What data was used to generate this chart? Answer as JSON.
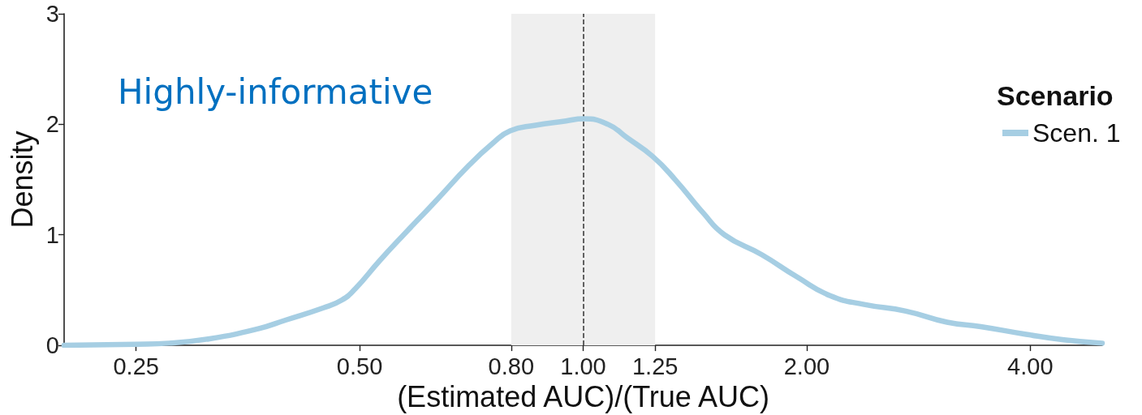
{
  "chart_data": {
    "type": "line",
    "xlabel": "(Estimated AUC)/(True AUC)",
    "ylabel": "Density",
    "legend_title": "Scenario",
    "annotations": [
      "Highly-informative"
    ],
    "x": [
      0.2,
      0.25,
      0.277,
      0.314,
      0.365,
      0.398,
      0.447,
      0.473,
      0.493,
      0.531,
      0.573,
      0.632,
      0.702,
      0.756,
      0.797,
      0.86,
      0.948,
      1.0,
      1.08,
      1.145,
      1.24,
      1.33,
      1.45,
      1.55,
      1.74,
      1.94,
      2.15,
      2.39,
      2.72,
      3.09,
      3.43,
      3.95,
      4.44,
      5.0
    ],
    "series": [
      {
        "name": "Scen. 1",
        "color": "#a6cee3",
        "values": [
          0.0,
          0.01,
          0.02,
          0.06,
          0.15,
          0.23,
          0.34,
          0.41,
          0.51,
          0.76,
          1.0,
          1.3,
          1.63,
          1.83,
          1.94,
          1.99,
          2.03,
          2.05,
          2.0,
          1.88,
          1.71,
          1.5,
          1.2,
          1.0,
          0.82,
          0.62,
          0.45,
          0.37,
          0.31,
          0.21,
          0.17,
          0.1,
          0.05,
          0.02
        ]
      }
    ],
    "log": "x",
    "xlim": [
      0.2,
      5
    ],
    "xticks": [
      0.25,
      {
        "value": 0.5,
        "label": "0.50"
      },
      {
        "value": 0.8,
        "label": "0.80"
      },
      {
        "value": 1,
        "label": "1.00"
      },
      1.25,
      {
        "value": 2,
        "label": "2.00"
      },
      {
        "value": 4,
        "label": "4.00"
      }
    ],
    "ylim": [
      0,
      3
    ],
    "yticks": [
      0,
      1,
      2,
      3
    ],
    "bands": [
      {
        "axis": "x",
        "from": 0.8,
        "to": 1.25,
        "color": "#efefef"
      }
    ],
    "ref_lines": [
      {
        "axis": "x",
        "value": 1,
        "color": "#333333",
        "line_style": "dashed"
      }
    ],
    "legend": "right",
    "marker": "none",
    "line_style": "solid"
  }
}
